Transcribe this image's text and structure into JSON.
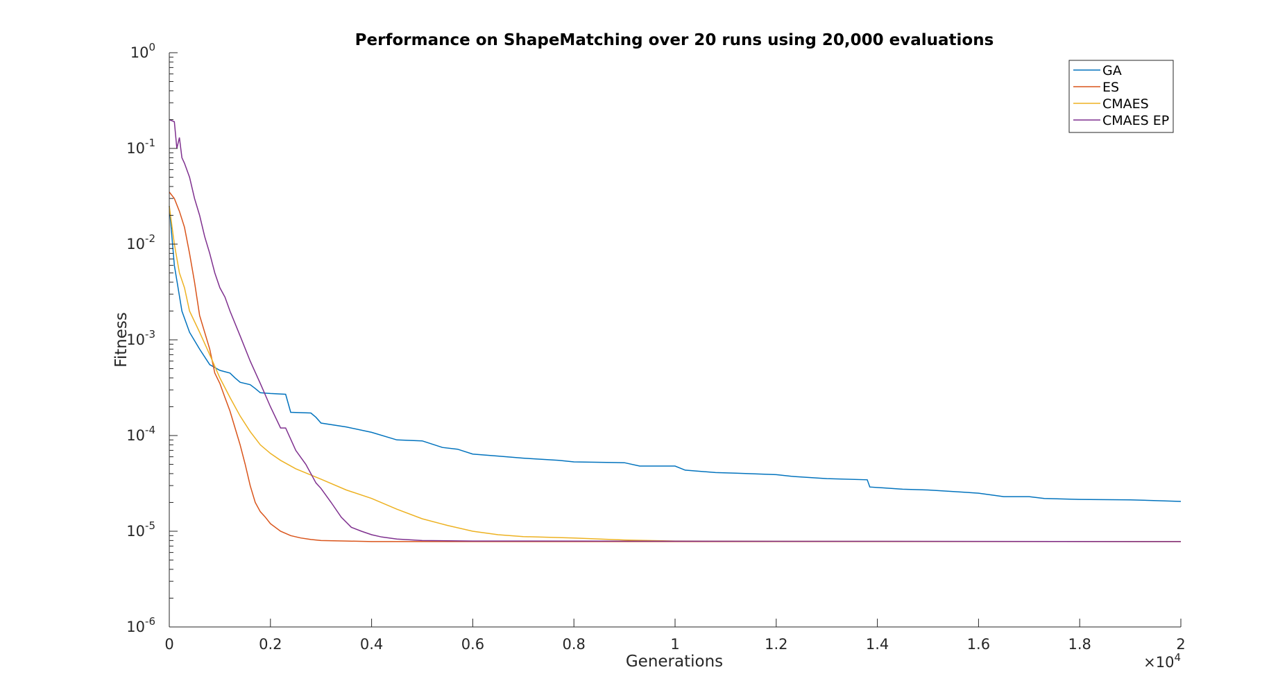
{
  "chart_data": {
    "type": "line",
    "title": "Performance on ShapeMatching over 20 runs using 20,000 evaluations",
    "xlabel": "Generations",
    "ylabel": "Fitness",
    "x_exponent_label": "×10^4",
    "x_exponent_base": "×10",
    "x_exponent_power": "4",
    "xlim": [
      0,
      20000
    ],
    "ylim": [
      1e-06,
      1
    ],
    "yscale": "log",
    "x_ticks": [
      0,
      2000,
      4000,
      6000,
      8000,
      10000,
      12000,
      14000,
      16000,
      18000,
      20000
    ],
    "x_tick_labels": [
      "0",
      "0.2",
      "0.4",
      "0.6",
      "0.8",
      "1",
      "1.2",
      "1.4",
      "1.6",
      "1.8",
      "2"
    ],
    "y_ticks": [
      {
        "value": 1e-06,
        "base": "10",
        "exp": "-6"
      },
      {
        "value": 1e-05,
        "base": "10",
        "exp": "-5"
      },
      {
        "value": 0.0001,
        "base": "10",
        "exp": "-4"
      },
      {
        "value": 0.001,
        "base": "10",
        "exp": "-3"
      },
      {
        "value": 0.01,
        "base": "10",
        "exp": "-2"
      },
      {
        "value": 0.1,
        "base": "10",
        "exp": "-1"
      },
      {
        "value": 1,
        "base": "10",
        "exp": "0"
      }
    ],
    "grid": false,
    "legend_position": "top-right",
    "series": [
      {
        "name": "GA",
        "color": "#0072bd",
        "x": [
          0,
          100,
          250,
          400,
          600,
          800,
          1000,
          1200,
          1300,
          1400,
          1600,
          1700,
          1800,
          2000,
          2300,
          2400,
          2800,
          2900,
          3000,
          3500,
          4000,
          4500,
          5000,
          5400,
          5700,
          6000,
          6500,
          7000,
          7700,
          8000,
          9000,
          9300,
          10000,
          10200,
          10800,
          11200,
          12000,
          12300,
          13000,
          13800,
          13850,
          14500,
          15000,
          15500,
          16000,
          16500,
          17000,
          17300,
          18000,
          19000,
          20000
        ],
        "y": [
          0.025,
          0.006,
          0.002,
          0.0012,
          0.0008,
          0.00055,
          0.00048,
          0.00045,
          0.0004,
          0.00036,
          0.00034,
          0.00031,
          0.00028,
          0.000275,
          0.00027,
          0.000175,
          0.000172,
          0.000155,
          0.000135,
          0.000123,
          0.000108,
          9e-05,
          8.8e-05,
          7.5e-05,
          7.2e-05,
          6.4e-05,
          6.1e-05,
          5.8e-05,
          5.5e-05,
          5.3e-05,
          5.2e-05,
          4.8e-05,
          4.8e-05,
          4.35e-05,
          4.1e-05,
          4.05e-05,
          3.9e-05,
          3.75e-05,
          3.55e-05,
          3.45e-05,
          2.9e-05,
          2.75e-05,
          2.7e-05,
          2.6e-05,
          2.5e-05,
          2.3e-05,
          2.3e-05,
          2.2e-05,
          2.15e-05,
          2.13e-05,
          2.05e-05
        ]
      },
      {
        "name": "ES",
        "color": "#d95319",
        "x": [
          0,
          100,
          200,
          300,
          400,
          500,
          600,
          700,
          800,
          900,
          1000,
          1100,
          1200,
          1300,
          1400,
          1500,
          1600,
          1700,
          1800,
          1900,
          2000,
          2200,
          2400,
          2600,
          2800,
          3000,
          3500,
          4000,
          5000,
          20000
        ],
        "y": [
          0.035,
          0.03,
          0.022,
          0.015,
          0.008,
          0.004,
          0.0018,
          0.0012,
          0.0008,
          0.00045,
          0.00035,
          0.00025,
          0.00018,
          0.00012,
          8e-05,
          5e-05,
          3e-05,
          2e-05,
          1.6e-05,
          1.4e-05,
          1.2e-05,
          1e-05,
          9e-06,
          8.5e-06,
          8.2e-06,
          8e-06,
          7.9e-06,
          7.8e-06,
          7.8e-06,
          7.8e-06
        ]
      },
      {
        "name": "CMAES",
        "color": "#edb120",
        "x": [
          0,
          100,
          200,
          300,
          400,
          600,
          800,
          1000,
          1200,
          1400,
          1600,
          1800,
          2000,
          2200,
          2500,
          3000,
          3500,
          4000,
          4500,
          5000,
          5500,
          6000,
          6500,
          7000,
          8000,
          9000,
          10000,
          12000,
          20000
        ],
        "y": [
          0.025,
          0.01,
          0.005,
          0.0035,
          0.002,
          0.0012,
          0.0007,
          0.0004,
          0.00025,
          0.00016,
          0.00011,
          8e-05,
          6.5e-05,
          5.5e-05,
          4.5e-05,
          3.5e-05,
          2.7e-05,
          2.2e-05,
          1.7e-05,
          1.35e-05,
          1.15e-05,
          1e-05,
          9.2e-06,
          8.8e-06,
          8.5e-06,
          8.1e-06,
          7.9e-06,
          7.85e-06,
          7.8e-06
        ]
      },
      {
        "name": "CMAES EP",
        "color": "#7e2f8e",
        "x": [
          0,
          100,
          150,
          200,
          250,
          300,
          400,
          500,
          600,
          700,
          800,
          900,
          1000,
          1100,
          1200,
          1400,
          1600,
          1800,
          2000,
          2200,
          2300,
          2500,
          2700,
          2900,
          3000,
          3200,
          3400,
          3600,
          3800,
          4000,
          4200,
          4500,
          5000,
          6000,
          20000
        ],
        "y": [
          0.2,
          0.19,
          0.1,
          0.13,
          0.08,
          0.07,
          0.05,
          0.03,
          0.02,
          0.012,
          0.008,
          0.005,
          0.0035,
          0.0028,
          0.002,
          0.0011,
          0.0006,
          0.00035,
          0.0002,
          0.00012,
          0.00012,
          7e-05,
          5e-05,
          3.2e-05,
          2.8e-05,
          2e-05,
          1.4e-05,
          1.1e-05,
          1e-05,
          9.2e-06,
          8.7e-06,
          8.3e-06,
          8e-06,
          7.9e-06,
          7.8e-06
        ]
      }
    ]
  }
}
